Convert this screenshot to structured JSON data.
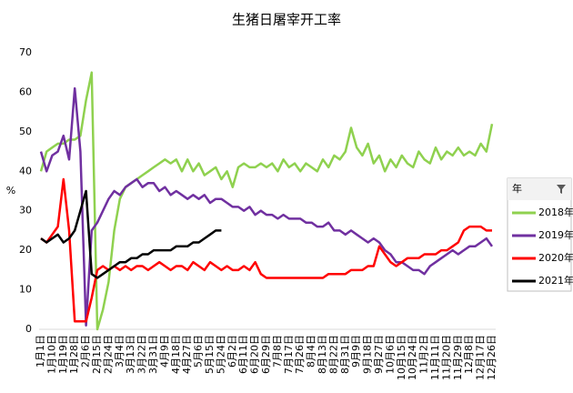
{
  "chart_data": {
    "type": "line",
    "title": "生猪日屠宰开工率",
    "y_label": "%",
    "legend_title": "年",
    "categories": [
      "1月1日",
      null,
      "1月10日",
      null,
      "1月19日",
      null,
      "1月28日",
      null,
      "2月6日",
      null,
      "2月15日",
      null,
      "2月24日",
      null,
      "3月4日",
      null,
      "3月13日",
      null,
      "3月22日",
      null,
      "3月31日",
      null,
      "4月9日",
      null,
      "4月18日",
      null,
      "4月27日",
      null,
      "5月6日",
      null,
      "5月15日",
      null,
      "5月24日",
      null,
      "6月2日",
      null,
      "6月11日",
      null,
      "6月20日",
      null,
      "6月29日",
      null,
      "7月8日",
      null,
      "7月17日",
      null,
      "7月26日",
      null,
      "8月4日",
      null,
      "8月13日",
      null,
      "8月22日",
      null,
      "8月31日",
      null,
      "9月9日",
      null,
      "9月18日",
      null,
      "9月27日",
      null,
      "10月6日",
      null,
      "10月15日",
      null,
      "10月24日",
      null,
      "11月2日",
      null,
      "11月11日",
      null,
      "11月20日",
      null,
      "11月29日",
      null,
      "12月8日",
      null,
      "12月17日",
      null,
      "12月26日"
    ],
    "ylim": [
      0,
      70
    ],
    "yticks": [
      0,
      10,
      20,
      30,
      40,
      50,
      60,
      70
    ],
    "series": [
      {
        "name": "2018年",
        "color": "#8fd14f",
        "values": [
          40,
          45,
          46,
          47,
          47,
          48,
          48,
          49,
          58,
          65,
          0,
          5,
          12,
          25,
          33,
          36,
          37,
          38,
          39,
          40,
          41,
          42,
          43,
          42,
          43,
          40,
          43,
          40,
          42,
          39,
          40,
          41,
          38,
          40,
          36,
          41,
          42,
          41,
          41,
          42,
          41,
          42,
          40,
          43,
          41,
          42,
          40,
          42,
          41,
          40,
          43,
          41,
          44,
          43,
          45,
          51,
          46,
          44,
          47,
          42,
          44,
          40,
          43,
          41,
          44,
          42,
          41,
          45,
          43,
          42,
          46,
          43,
          45,
          44,
          46,
          44,
          45,
          44,
          47,
          45,
          52
        ]
      },
      {
        "name": "2019年",
        "color": "#7030a0",
        "values": [
          45,
          40,
          44,
          45,
          49,
          43,
          61,
          45,
          1,
          25,
          27,
          30,
          33,
          35,
          34,
          36,
          37,
          38,
          36,
          37,
          37,
          35,
          36,
          34,
          35,
          34,
          33,
          34,
          33,
          34,
          32,
          33,
          33,
          32,
          31,
          31,
          30,
          31,
          29,
          30,
          29,
          29,
          28,
          29,
          28,
          28,
          28,
          27,
          27,
          26,
          26,
          27,
          25,
          25,
          24,
          25,
          24,
          23,
          22,
          23,
          22,
          20,
          19,
          17,
          17,
          16,
          15,
          15,
          14,
          16,
          17,
          18,
          19,
          20,
          19,
          20,
          21,
          21,
          22,
          23,
          21
        ]
      },
      {
        "name": "2020年",
        "color": "#ff0000",
        "values": [
          23,
          22,
          24,
          26,
          38,
          25,
          2,
          2,
          2,
          8,
          15,
          16,
          15,
          16,
          15,
          16,
          15,
          16,
          16,
          15,
          16,
          17,
          16,
          15,
          16,
          16,
          15,
          17,
          16,
          15,
          17,
          16,
          15,
          16,
          15,
          15,
          16,
          15,
          17,
          14,
          13,
          13,
          13,
          13,
          13,
          13,
          13,
          13,
          13,
          13,
          13,
          14,
          14,
          14,
          14,
          15,
          15,
          15,
          16,
          16,
          21,
          19,
          17,
          16,
          17,
          18,
          18,
          18,
          19,
          19,
          19,
          20,
          20,
          21,
          22,
          25,
          26,
          26,
          26,
          25,
          25
        ]
      },
      {
        "name": "2021年",
        "color": "#000000",
        "values": [
          23,
          22,
          23,
          24,
          22,
          23,
          25,
          30,
          35,
          14,
          13,
          14,
          15,
          16,
          17,
          17,
          18,
          18,
          19,
          19,
          20,
          20,
          20,
          20,
          21,
          21,
          21,
          22,
          22,
          23,
          24,
          25,
          25,
          null,
          null,
          null,
          null,
          null,
          null,
          null,
          null,
          null,
          null,
          null,
          null,
          null,
          null,
          null,
          null,
          null,
          null,
          null,
          null,
          null,
          null,
          null,
          null,
          null,
          null,
          null,
          null,
          null,
          null,
          null,
          null,
          null,
          null,
          null,
          null,
          null,
          null,
          null,
          null,
          null,
          null,
          null,
          null,
          null,
          null,
          null,
          null
        ]
      }
    ]
  }
}
